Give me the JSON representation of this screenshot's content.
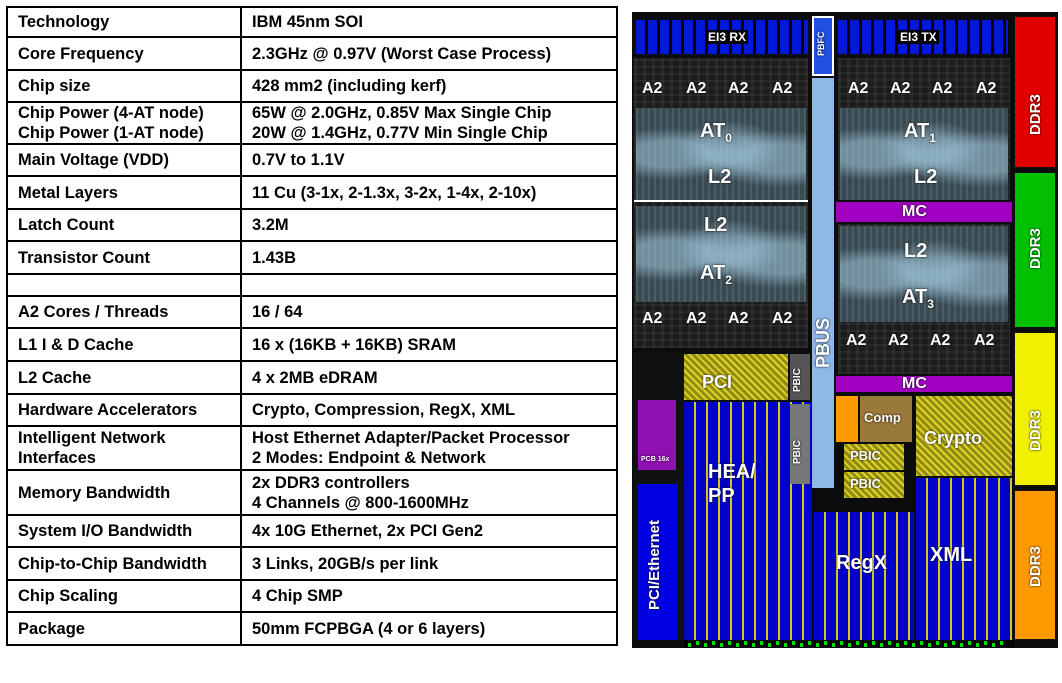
{
  "spec_table": {
    "rows": [
      {
        "label": "Technology",
        "value": "IBM 45nm SOI"
      },
      {
        "label": "Core Frequency",
        "value": "2.3GHz @ 0.97V (Worst Case Process)"
      },
      {
        "label": "Chip size",
        "value": "428 mm2 (including kerf)"
      },
      {
        "label": "Chip Power (4-AT node)\nChip Power (1-AT node)",
        "value": "65W @ 2.0GHz, 0.85V  Max Single Chip\n20W @ 1.4GHz, 0.77V  Min Single Chip"
      },
      {
        "label": "Main Voltage (VDD)",
        "value": "0.7V to 1.1V"
      },
      {
        "label": "Metal Layers",
        "value": "11 Cu (3-1x, 2-1.3x, 3-2x, 1-4x, 2-10x)"
      },
      {
        "label": "Latch Count",
        "value": "3.2M"
      },
      {
        "label": "Transistor Count",
        "value": "1.43B"
      },
      {
        "label": "",
        "value": ""
      },
      {
        "label": "A2 Cores / Threads",
        "value": "16 / 64"
      },
      {
        "label": "L1 I & D Cache",
        "value": "16 x (16KB + 16KB) SRAM"
      },
      {
        "label": "L2 Cache",
        "value": "4 x 2MB eDRAM"
      },
      {
        "label": "Hardware Accelerators",
        "value": "Crypto, Compression, RegX, XML"
      },
      {
        "label": "Intelligent Network\nInterfaces",
        "value": "Host Ethernet Adapter/Packet Processor\n2 Modes: Endpoint & Network"
      },
      {
        "label": "Memory Bandwidth",
        "value": "2x DDR3 controllers\n4 Channels @ 800-1600MHz"
      },
      {
        "label": "System I/O Bandwidth",
        "value": "4x 10G Ethernet, 2x PCI Gen2"
      },
      {
        "label": "Chip-to-Chip Bandwidth",
        "value": "3 Links, 20GB/s per link"
      },
      {
        "label": "Chip Scaling",
        "value": "4 Chip SMP"
      },
      {
        "label": "Package",
        "value": "50mm FCPBGA (4 or 6 layers)"
      }
    ]
  },
  "die_shot": {
    "header_left": "EI3 RX",
    "header_right": "EI3 TX",
    "pbfc": "PBFC",
    "core_label": "A2",
    "at_prefix": "AT",
    "at_subscripts": [
      "0",
      "1",
      "2",
      "3"
    ],
    "l2": "L2",
    "mc": "MC",
    "pbus": "PBUS",
    "ddr": "DDR3",
    "pci": "PCI",
    "pbic": "PBIC",
    "comp": "Comp",
    "crypto": "Crypto",
    "hea_pp": "HEA/\nPP",
    "regx": "RegX",
    "xml": "XML",
    "pci_ethernet": "PCI/Ethernet",
    "pcb_tag": "PCB 16x",
    "colors": {
      "ddr_segments": [
        "#e00000",
        "#00c000",
        "#f0f000",
        "#ff9900"
      ],
      "pbus": "#8fb8e6",
      "mc": "#a000c0",
      "pci_ethernet": "#0000e0",
      "pcb": "#9010b0"
    }
  }
}
